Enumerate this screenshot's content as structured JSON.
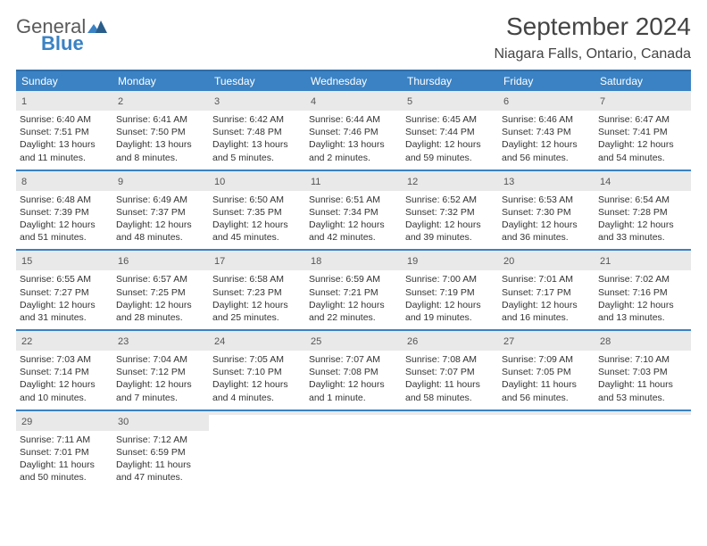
{
  "logo": {
    "line1": "General",
    "line2": "Blue"
  },
  "title": "September 2024",
  "location": "Niagara Falls, Ontario, Canada",
  "colors": {
    "header_bg": "#3a82c4",
    "border": "#2f6ea8",
    "daynum_bg": "#e9e9e9",
    "text": "#333333",
    "logo_gray": "#5a5a5a",
    "logo_blue": "#3a82c4"
  },
  "day_headers": [
    "Sunday",
    "Monday",
    "Tuesday",
    "Wednesday",
    "Thursday",
    "Friday",
    "Saturday"
  ],
  "weeks": [
    [
      {
        "n": "1",
        "sr": "6:40 AM",
        "ss": "7:51 PM",
        "dl": "13 hours and 11 minutes."
      },
      {
        "n": "2",
        "sr": "6:41 AM",
        "ss": "7:50 PM",
        "dl": "13 hours and 8 minutes."
      },
      {
        "n": "3",
        "sr": "6:42 AM",
        "ss": "7:48 PM",
        "dl": "13 hours and 5 minutes."
      },
      {
        "n": "4",
        "sr": "6:44 AM",
        "ss": "7:46 PM",
        "dl": "13 hours and 2 minutes."
      },
      {
        "n": "5",
        "sr": "6:45 AM",
        "ss": "7:44 PM",
        "dl": "12 hours and 59 minutes."
      },
      {
        "n": "6",
        "sr": "6:46 AM",
        "ss": "7:43 PM",
        "dl": "12 hours and 56 minutes."
      },
      {
        "n": "7",
        "sr": "6:47 AM",
        "ss": "7:41 PM",
        "dl": "12 hours and 54 minutes."
      }
    ],
    [
      {
        "n": "8",
        "sr": "6:48 AM",
        "ss": "7:39 PM",
        "dl": "12 hours and 51 minutes."
      },
      {
        "n": "9",
        "sr": "6:49 AM",
        "ss": "7:37 PM",
        "dl": "12 hours and 48 minutes."
      },
      {
        "n": "10",
        "sr": "6:50 AM",
        "ss": "7:35 PM",
        "dl": "12 hours and 45 minutes."
      },
      {
        "n": "11",
        "sr": "6:51 AM",
        "ss": "7:34 PM",
        "dl": "12 hours and 42 minutes."
      },
      {
        "n": "12",
        "sr": "6:52 AM",
        "ss": "7:32 PM",
        "dl": "12 hours and 39 minutes."
      },
      {
        "n": "13",
        "sr": "6:53 AM",
        "ss": "7:30 PM",
        "dl": "12 hours and 36 minutes."
      },
      {
        "n": "14",
        "sr": "6:54 AM",
        "ss": "7:28 PM",
        "dl": "12 hours and 33 minutes."
      }
    ],
    [
      {
        "n": "15",
        "sr": "6:55 AM",
        "ss": "7:27 PM",
        "dl": "12 hours and 31 minutes."
      },
      {
        "n": "16",
        "sr": "6:57 AM",
        "ss": "7:25 PM",
        "dl": "12 hours and 28 minutes."
      },
      {
        "n": "17",
        "sr": "6:58 AM",
        "ss": "7:23 PM",
        "dl": "12 hours and 25 minutes."
      },
      {
        "n": "18",
        "sr": "6:59 AM",
        "ss": "7:21 PM",
        "dl": "12 hours and 22 minutes."
      },
      {
        "n": "19",
        "sr": "7:00 AM",
        "ss": "7:19 PM",
        "dl": "12 hours and 19 minutes."
      },
      {
        "n": "20",
        "sr": "7:01 AM",
        "ss": "7:17 PM",
        "dl": "12 hours and 16 minutes."
      },
      {
        "n": "21",
        "sr": "7:02 AM",
        "ss": "7:16 PM",
        "dl": "12 hours and 13 minutes."
      }
    ],
    [
      {
        "n": "22",
        "sr": "7:03 AM",
        "ss": "7:14 PM",
        "dl": "12 hours and 10 minutes."
      },
      {
        "n": "23",
        "sr": "7:04 AM",
        "ss": "7:12 PM",
        "dl": "12 hours and 7 minutes."
      },
      {
        "n": "24",
        "sr": "7:05 AM",
        "ss": "7:10 PM",
        "dl": "12 hours and 4 minutes."
      },
      {
        "n": "25",
        "sr": "7:07 AM",
        "ss": "7:08 PM",
        "dl": "12 hours and 1 minute."
      },
      {
        "n": "26",
        "sr": "7:08 AM",
        "ss": "7:07 PM",
        "dl": "11 hours and 58 minutes."
      },
      {
        "n": "27",
        "sr": "7:09 AM",
        "ss": "7:05 PM",
        "dl": "11 hours and 56 minutes."
      },
      {
        "n": "28",
        "sr": "7:10 AM",
        "ss": "7:03 PM",
        "dl": "11 hours and 53 minutes."
      }
    ],
    [
      {
        "n": "29",
        "sr": "7:11 AM",
        "ss": "7:01 PM",
        "dl": "11 hours and 50 minutes."
      },
      {
        "n": "30",
        "sr": "7:12 AM",
        "ss": "6:59 PM",
        "dl": "11 hours and 47 minutes."
      },
      null,
      null,
      null,
      null,
      null
    ]
  ],
  "labels": {
    "sunrise": "Sunrise:",
    "sunset": "Sunset:",
    "daylight": "Daylight:"
  }
}
